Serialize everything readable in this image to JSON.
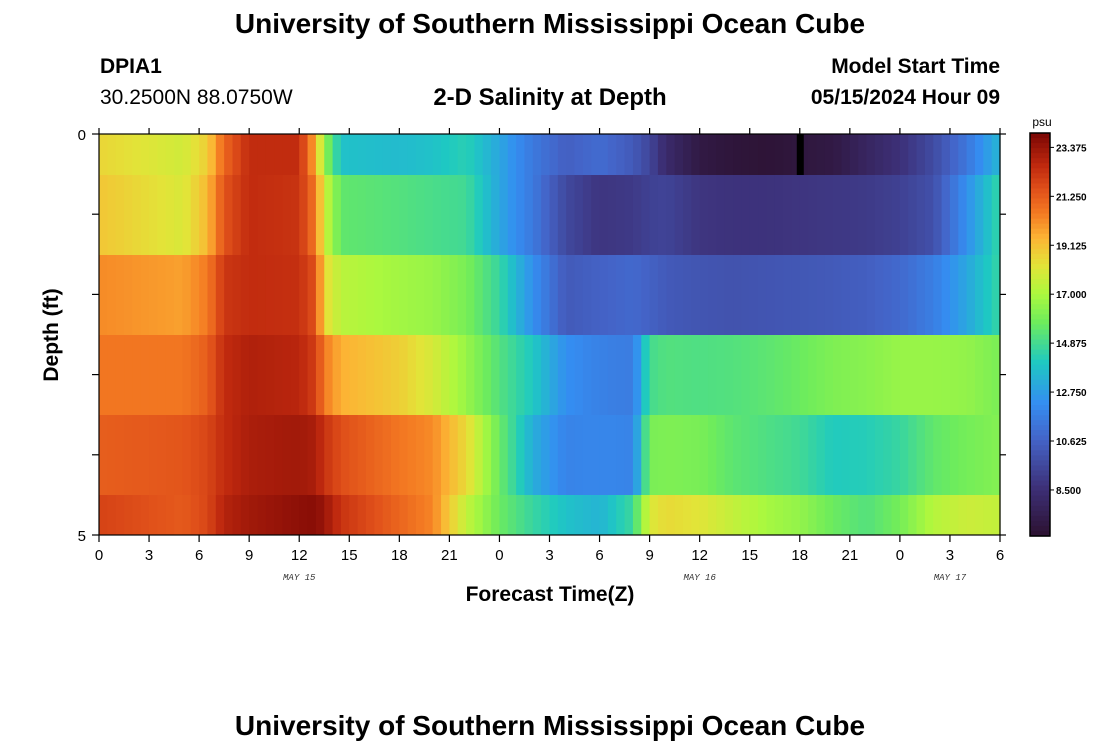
{
  "header": {
    "title": "University of Southern Mississippi Ocean Cube",
    "station": "DPIA1",
    "coords": "30.2500N  88.0750W",
    "chart_title": "2-D Salinity at Depth",
    "model_label": "Model Start Time",
    "model_time": "05/15/2024 Hour 09"
  },
  "footer": {
    "title": "University of Southern Mississippi Ocean Cube"
  },
  "chart_data": {
    "type": "heatmap",
    "title": "2-D Salinity at Depth",
    "xlabel": "Forecast Time(Z)",
    "ylabel": "Depth (ft)",
    "x_tick_labels": [
      "0",
      "3",
      "6",
      "9",
      "12",
      "15",
      "18",
      "21",
      "0",
      "3",
      "6",
      "9",
      "12",
      "15",
      "18",
      "21",
      "0",
      "3",
      "6"
    ],
    "x_range_hours": [
      0,
      54
    ],
    "date_labels": [
      {
        "text": "MAY 15",
        "hour": 12
      },
      {
        "text": "MAY 16",
        "hour": 36
      },
      {
        "text": "MAY 17",
        "hour": 51
      }
    ],
    "y_tick_labels": [
      "0",
      "5"
    ],
    "y_range_ft": [
      0,
      5
    ],
    "depth_layers_ft": [
      0,
      1,
      2,
      3,
      4,
      5
    ],
    "colorbar": {
      "unit": "psu",
      "tick_labels": [
        "23.375",
        "21.250",
        "19.125",
        "17.000",
        "14.875",
        "12.750",
        "10.625",
        "8.500"
      ],
      "range": [
        6.5,
        24.0
      ]
    },
    "salinity_keyframes": {
      "hours": [
        0,
        5,
        6.5,
        7.5,
        9,
        12,
        13,
        13.5,
        14.5,
        18,
        20,
        22,
        24,
        26,
        28,
        30,
        32,
        33,
        34,
        36,
        38,
        40,
        42,
        44,
        46,
        48,
        50,
        52,
        54
      ],
      "layers": [
        [
          18.6,
          17.8,
          18.8,
          21.0,
          22.5,
          22.5,
          19.5,
          16.5,
          13.8,
          13.6,
          13.8,
          14.3,
          13.0,
          11.5,
          10.5,
          11.0,
          10.3,
          9.5,
          8.2,
          7.1,
          6.8,
          6.7,
          6.9,
          7.1,
          7.9,
          8.6,
          9.7,
          11.4,
          13.5
        ],
        [
          19.0,
          18.0,
          19.3,
          21.5,
          22.5,
          22.3,
          20.5,
          17.8,
          15.5,
          15.2,
          15.0,
          14.8,
          13.0,
          11.5,
          9.6,
          8.8,
          9.0,
          9.3,
          9.4,
          8.8,
          8.7,
          8.7,
          8.8,
          8.9,
          9.0,
          9.3,
          9.9,
          12.3,
          14.6
        ],
        [
          20.2,
          19.8,
          20.5,
          22.2,
          22.5,
          22.4,
          21.5,
          18.5,
          17.3,
          16.8,
          16.6,
          16.0,
          14.6,
          12.3,
          10.3,
          10.6,
          10.9,
          10.6,
          10.3,
          10.1,
          10.0,
          10.1,
          10.2,
          10.3,
          10.5,
          10.9,
          11.7,
          13.0,
          14.6
        ],
        [
          20.6,
          20.6,
          21.2,
          22.5,
          22.9,
          22.7,
          22.0,
          20.5,
          19.5,
          18.8,
          17.9,
          16.6,
          15.2,
          14.0,
          12.3,
          11.8,
          11.6,
          14.9,
          15.2,
          15.1,
          15.2,
          15.4,
          15.7,
          16.1,
          16.3,
          16.6,
          16.6,
          16.5,
          16.0
        ],
        [
          21.2,
          21.4,
          21.8,
          22.5,
          23.0,
          23.2,
          23.0,
          22.3,
          21.6,
          20.6,
          20.2,
          18.5,
          15.7,
          13.2,
          11.9,
          12.0,
          11.9,
          16.0,
          16.1,
          16.0,
          15.4,
          15.1,
          14.8,
          14.1,
          14.2,
          14.6,
          15.5,
          15.9,
          16.2
        ],
        [
          21.9,
          21.3,
          21.8,
          22.8,
          23.2,
          23.6,
          23.7,
          23.3,
          22.3,
          21.0,
          20.3,
          17.5,
          15.7,
          14.6,
          13.8,
          13.4,
          14.7,
          18.0,
          18.5,
          18.2,
          17.5,
          16.9,
          16.5,
          15.7,
          15.2,
          15.9,
          17.2,
          17.7,
          17.5
        ]
      ]
    },
    "special_marks": [
      {
        "hour": 42,
        "layer": 0,
        "note": "black missing-data cell at top layer"
      }
    ]
  }
}
